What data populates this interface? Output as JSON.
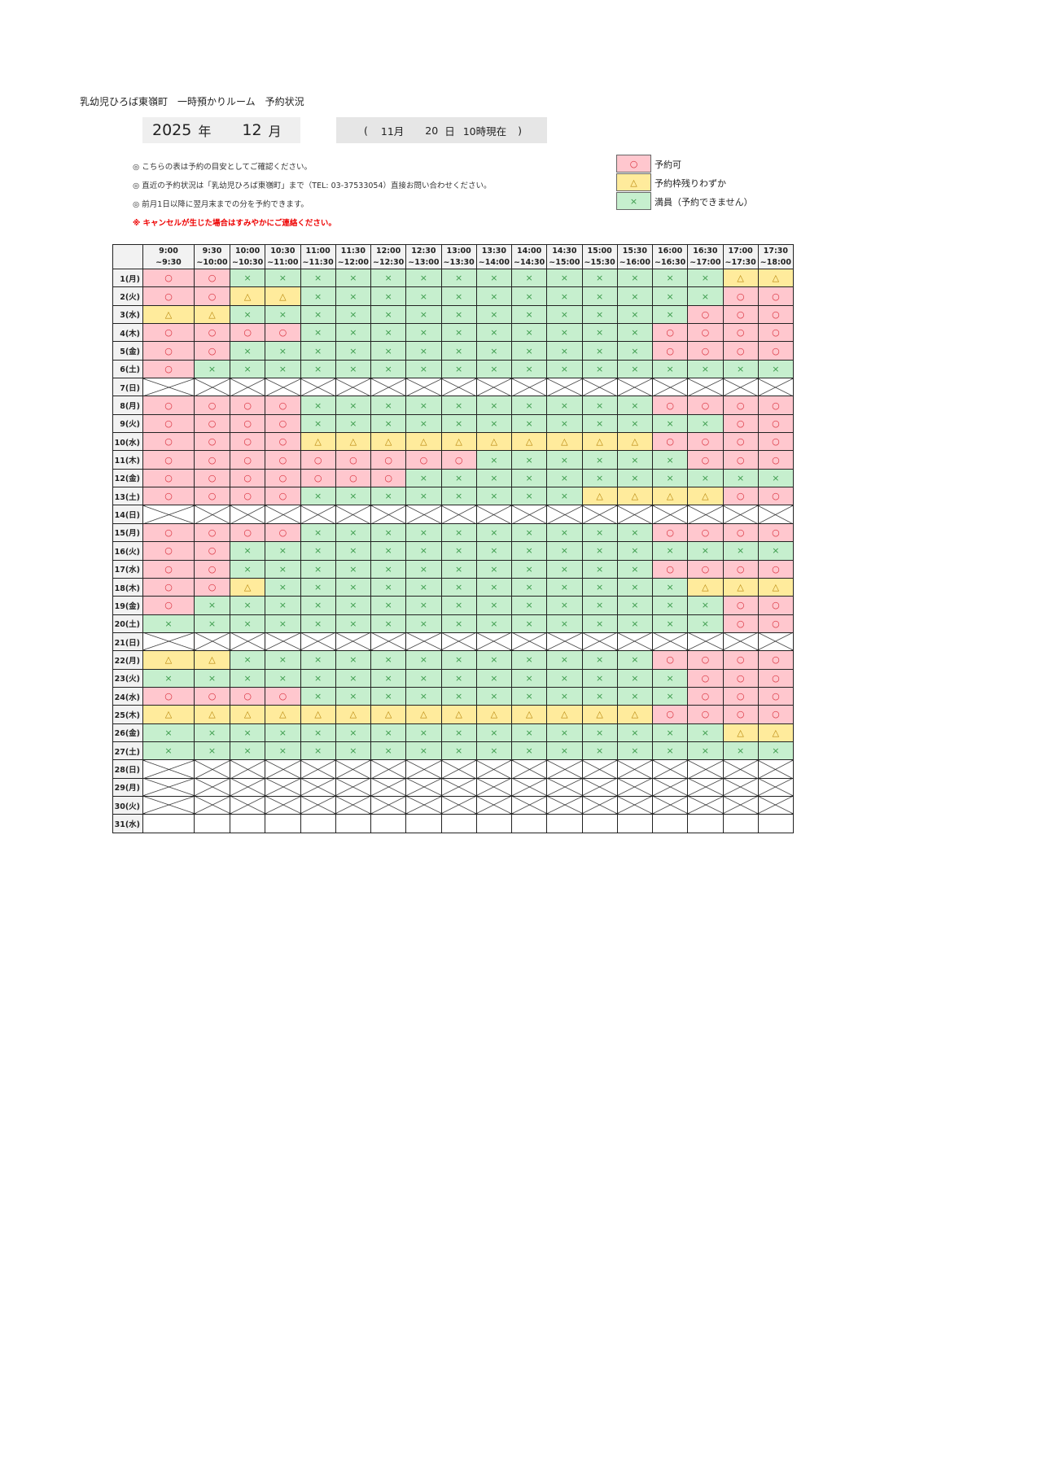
{
  "title": "乳幼児ひろば東嶺町　一時預かりルーム　予約状況",
  "year": "2025",
  "year_unit": "年",
  "month": "12",
  "month_unit": "月",
  "as_of": {
    "open": "(",
    "month": "11月",
    "day": "20",
    "day_unit": "日",
    "time": "10時現在",
    "close": ")"
  },
  "notes": [
    "◎ こちらの表は予約の目安としてご確認ください。",
    "◎ 直近の予約状況は「乳幼児ひろば東嶺町」まで（TEL: 03-37533054）直接お問い合わせください。",
    "◎ 前月1日以降に翌月末までの分を予約できます。"
  ],
  "warning": "※ キャンセルが生じた場合はすみやかにご連絡ください。",
  "legend": [
    {
      "code": "o",
      "symbol": "○",
      "label": "予約可",
      "color": "#ffc7ce"
    },
    {
      "code": "t",
      "symbol": "△",
      "label": "予約枠残りわずか",
      "color": "#ffeb9c"
    },
    {
      "code": "x",
      "symbol": "×",
      "label": "満員（予約できません）",
      "color": "#c6efce"
    }
  ],
  "time_slots": [
    [
      "9:00",
      "~9:30"
    ],
    [
      "9:30",
      "~10:00"
    ],
    [
      "10:00",
      "~10:30"
    ],
    [
      "10:30",
      "~11:00"
    ],
    [
      "11:00",
      "~11:30"
    ],
    [
      "11:30",
      "~12:00"
    ],
    [
      "12:00",
      "~12:30"
    ],
    [
      "12:30",
      "~13:00"
    ],
    [
      "13:00",
      "~13:30"
    ],
    [
      "13:30",
      "~14:00"
    ],
    [
      "14:00",
      "~14:30"
    ],
    [
      "14:30",
      "~15:00"
    ],
    [
      "15:00",
      "~15:30"
    ],
    [
      "15:30",
      "~16:00"
    ],
    [
      "16:00",
      "~16:30"
    ],
    [
      "16:30",
      "~17:00"
    ],
    [
      "17:00",
      "~17:30"
    ],
    [
      "17:30",
      "~18:00"
    ]
  ],
  "status_key": {
    "c": "closed",
    "e": "blank"
  },
  "rows": [
    {
      "day": "1(月)",
      "s": "ooxxxxxxxxxxxxxxtt"
    },
    {
      "day": "2(火)",
      "s": "oottxxxxxxxxxxxxoo"
    },
    {
      "day": "3(水)",
      "s": "ttxxxxxxxxxxxxxooo"
    },
    {
      "day": "4(木)",
      "s": "ooooxxxxxxxxxxoooo"
    },
    {
      "day": "5(金)",
      "s": "ooxxxxxxxxxxxxoooo"
    },
    {
      "day": "6(土)",
      "s": "oxxxxxxxxxxxxxxxxx"
    },
    {
      "day": "7(日)",
      "s": "cccccccccccccccccc"
    },
    {
      "day": "8(月)",
      "s": "ooooxxxxxxxxxxoooo"
    },
    {
      "day": "9(火)",
      "s": "ooooxxxxxxxxxxxxoo"
    },
    {
      "day": "10(水)",
      "s": "oooottttttttttoooo"
    },
    {
      "day": "11(木)",
      "s": "oooooooooxxxxxxooo"
    },
    {
      "day": "12(金)",
      "s": "oooooooxxxxxxxxxxx"
    },
    {
      "day": "13(土)",
      "s": "ooooxxxxxxxxttttoo"
    },
    {
      "day": "14(日)",
      "s": "cccccccccccccccccc"
    },
    {
      "day": "15(月)",
      "s": "ooooxxxxxxxxxxoooo"
    },
    {
      "day": "16(火)",
      "s": "ooxxxxxxxxxxxxxxxx"
    },
    {
      "day": "17(水)",
      "s": "ooxxxxxxxxxxxxoooo"
    },
    {
      "day": "18(木)",
      "s": "ootxxxxxxxxxxxxttt"
    },
    {
      "day": "19(金)",
      "s": "oxxxxxxxxxxxxxxxoo"
    },
    {
      "day": "20(土)",
      "s": "xxxxxxxxxxxxxxxxoo"
    },
    {
      "day": "21(日)",
      "s": "cccccccccccccccccc"
    },
    {
      "day": "22(月)",
      "s": "ttxxxxxxxxxxxxoooo"
    },
    {
      "day": "23(火)",
      "s": "xxxxxxxxxxxxxxxooo"
    },
    {
      "day": "24(水)",
      "s": "ooooxxxxxxxxxxxooo"
    },
    {
      "day": "25(木)",
      "s": "ttttttttttttttoooo"
    },
    {
      "day": "26(金)",
      "s": "xxxxxxxxxxxxxxxxtt"
    },
    {
      "day": "27(土)",
      "s": "xxxxxxxxxxxxxxxxxx"
    },
    {
      "day": "28(日)",
      "s": "cccccccccccccccccc"
    },
    {
      "day": "29(月)",
      "s": "cccccccccccccccccc"
    },
    {
      "day": "30(火)",
      "s": "cccccccccccccccccc"
    },
    {
      "day": "31(水)",
      "s": "eeeeeeeeeeeeeeeeee"
    }
  ]
}
